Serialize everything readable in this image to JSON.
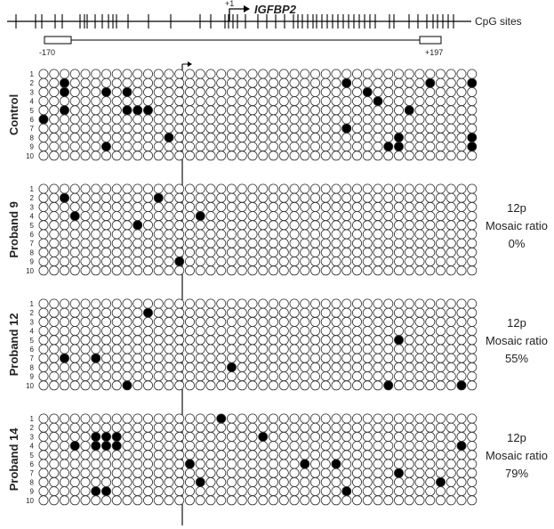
{
  "header": {
    "gene_label": "IGFBP2",
    "tss_label": "+1",
    "cpg_label": "CpG sites",
    "left_coord": "-170",
    "right_coord": "+197"
  },
  "groups": [
    {
      "name": "Control",
      "annotation": [],
      "rows": [
        {
          "label": "1",
          "methylated": []
        },
        {
          "label": "2",
          "methylated": [
            2,
            29,
            37,
            41
          ]
        },
        {
          "label": "3",
          "methylated": [
            2,
            6,
            8,
            31
          ]
        },
        {
          "label": "4",
          "methylated": [
            32
          ]
        },
        {
          "label": "5",
          "methylated": [
            2,
            8,
            9,
            10,
            35
          ]
        },
        {
          "label": "6",
          "methylated": [
            0
          ]
        },
        {
          "label": "7",
          "methylated": [
            29
          ]
        },
        {
          "label": "8",
          "methylated": [
            12,
            34,
            41
          ]
        },
        {
          "label": "9",
          "methylated": [
            6,
            33,
            34,
            41
          ]
        },
        {
          "label": "10",
          "methylated": []
        }
      ]
    },
    {
      "name": "Proband 9",
      "annotation": [
        "12p",
        "Mosaic ratio",
        "0%"
      ],
      "rows": [
        {
          "label": "1",
          "methylated": []
        },
        {
          "label": "2",
          "methylated": [
            2,
            11
          ]
        },
        {
          "label": "3",
          "methylated": []
        },
        {
          "label": "4",
          "methylated": [
            3,
            15
          ]
        },
        {
          "label": "5",
          "methylated": [
            9
          ]
        },
        {
          "label": "6",
          "methylated": []
        },
        {
          "label": "7",
          "methylated": []
        },
        {
          "label": "8",
          "methylated": []
        },
        {
          "label": "9",
          "methylated": [
            13
          ]
        },
        {
          "label": "10",
          "methylated": []
        }
      ]
    },
    {
      "name": "Proband 12",
      "annotation": [
        "12p",
        "Mosaic ratio",
        "55%"
      ],
      "rows": [
        {
          "label": "1",
          "methylated": []
        },
        {
          "label": "2",
          "methylated": [
            10
          ]
        },
        {
          "label": "3",
          "methylated": []
        },
        {
          "label": "4",
          "methylated": []
        },
        {
          "label": "5",
          "methylated": [
            34
          ]
        },
        {
          "label": "6",
          "methylated": []
        },
        {
          "label": "7",
          "methylated": [
            2,
            5
          ]
        },
        {
          "label": "8",
          "methylated": [
            18
          ]
        },
        {
          "label": "9",
          "methylated": []
        },
        {
          "label": "10",
          "methylated": [
            8,
            33,
            40
          ]
        }
      ]
    },
    {
      "name": "Proband 14",
      "annotation": [
        "12p",
        "Mosaic ratio",
        "79%"
      ],
      "rows": [
        {
          "label": "1",
          "methylated": [
            17
          ]
        },
        {
          "label": "2",
          "methylated": []
        },
        {
          "label": "3",
          "methylated": [
            5,
            6,
            7,
            21
          ]
        },
        {
          "label": "4",
          "methylated": [
            3,
            5,
            6,
            7,
            40
          ]
        },
        {
          "label": "5",
          "methylated": []
        },
        {
          "label": "6",
          "methylated": [
            14,
            25,
            28
          ]
        },
        {
          "label": "7",
          "methylated": [
            34
          ]
        },
        {
          "label": "8",
          "methylated": [
            15,
            38
          ]
        },
        {
          "label": "9",
          "methylated": [
            5,
            6,
            29
          ]
        },
        {
          "label": "10",
          "methylated": []
        }
      ]
    }
  ]
}
